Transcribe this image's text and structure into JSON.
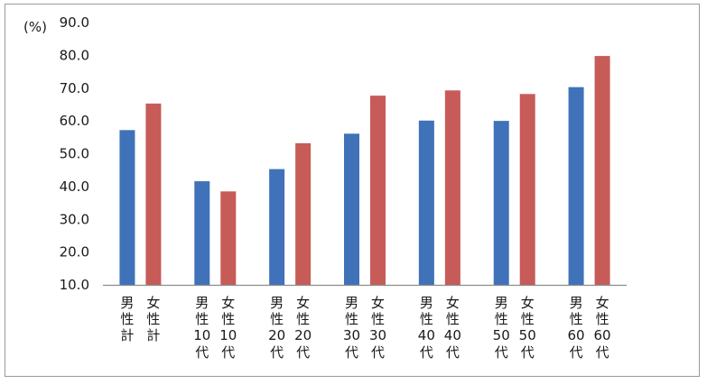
{
  "chart_data": {
    "type": "bar",
    "unit_label": "(%)",
    "ylim": [
      10,
      90
    ],
    "yticks": [
      "10.0",
      "20.0",
      "30.0",
      "40.0",
      "50.0",
      "60.0",
      "70.0",
      "80.0",
      "90.0"
    ],
    "grid": false,
    "legend": "none",
    "categories": [
      {
        "label_lines": [
          "男",
          "性",
          "計"
        ]
      },
      {
        "label_lines": [
          "女",
          "性",
          "計"
        ]
      },
      {
        "label_lines": [
          "男",
          "性",
          "10",
          "代"
        ]
      },
      {
        "label_lines": [
          "女",
          "性",
          "10",
          "代"
        ]
      },
      {
        "label_lines": [
          "男",
          "性",
          "20",
          "代"
        ]
      },
      {
        "label_lines": [
          "女",
          "性",
          "20",
          "代"
        ]
      },
      {
        "label_lines": [
          "男",
          "性",
          "30",
          "代"
        ]
      },
      {
        "label_lines": [
          "女",
          "性",
          "30",
          "代"
        ]
      },
      {
        "label_lines": [
          "男",
          "性",
          "40",
          "代"
        ]
      },
      {
        "label_lines": [
          "女",
          "性",
          "40",
          "代"
        ]
      },
      {
        "label_lines": [
          "男",
          "性",
          "50",
          "代"
        ]
      },
      {
        "label_lines": [
          "女",
          "性",
          "50",
          "代"
        ]
      },
      {
        "label_lines": [
          "男",
          "性",
          "60",
          "代"
        ]
      },
      {
        "label_lines": [
          "女",
          "性",
          "60",
          "代"
        ]
      }
    ],
    "values": [
      57.2,
      65.3,
      41.6,
      38.5,
      45.3,
      53.2,
      56.1,
      67.7,
      60.1,
      69.3,
      60.0,
      68.2,
      70.3,
      79.8
    ],
    "colors": [
      "#3f72b9",
      "#c75b58",
      "#3f72b9",
      "#c75b58",
      "#3f72b9",
      "#c75b58",
      "#3f72b9",
      "#c75b58",
      "#3f72b9",
      "#c75b58",
      "#3f72b9",
      "#c75b58",
      "#3f72b9",
      "#c75b58"
    ]
  }
}
